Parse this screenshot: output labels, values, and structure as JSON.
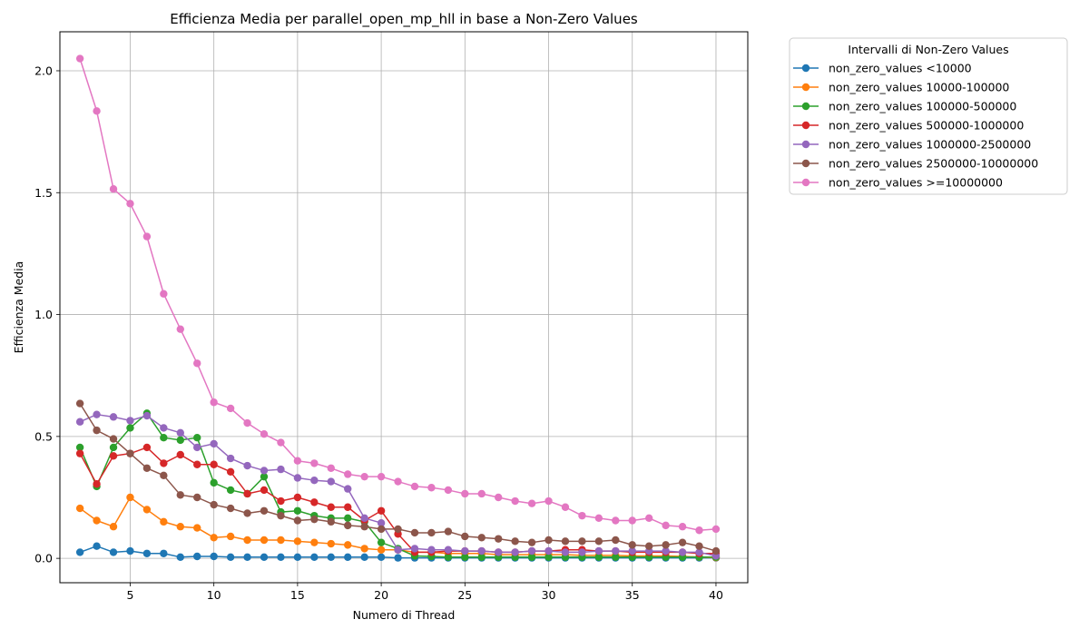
{
  "chart_data": {
    "type": "line",
    "title": "Efficienza Media per parallel_open_mp_hll in base a Non-Zero Values",
    "xlabel": "Numero di Thread",
    "ylabel": "Efficienza Media",
    "xlim": [
      0.8,
      41.9
    ],
    "ylim": [
      -0.1,
      2.16
    ],
    "x_ticks": [
      5,
      10,
      15,
      20,
      25,
      30,
      35,
      40
    ],
    "y_ticks": [
      0.0,
      0.5,
      1.0,
      1.5,
      2.0
    ],
    "x_tick_labels": [
      "5",
      "10",
      "15",
      "20",
      "25",
      "30",
      "35",
      "40"
    ],
    "y_tick_labels": [
      "0.0",
      "0.5",
      "1.0",
      "1.5",
      "2.0"
    ],
    "grid": true,
    "legend_title": "Intervalli di Non-Zero Values",
    "legend_position": "outside-right-top",
    "x": [
      2,
      3,
      4,
      5,
      6,
      7,
      8,
      9,
      10,
      11,
      12,
      13,
      14,
      15,
      16,
      17,
      18,
      19,
      20,
      21,
      22,
      23,
      24,
      25,
      26,
      27,
      28,
      29,
      30,
      31,
      32,
      33,
      34,
      35,
      36,
      37,
      38,
      39,
      40
    ],
    "series": [
      {
        "name": "non_zero_values <10000",
        "color": "#1f77b4",
        "values": [
          0.025,
          0.05,
          0.025,
          0.03,
          0.02,
          0.02,
          0.005,
          0.008,
          0.008,
          0.005,
          0.005,
          0.005,
          0.005,
          0.005,
          0.005,
          0.005,
          0.005,
          0.005,
          0.005,
          0.002,
          0.002,
          0.002,
          0.002,
          0.002,
          0.002,
          0.002,
          0.002,
          0.002,
          0.002,
          0.002,
          0.002,
          0.002,
          0.002,
          0.002,
          0.002,
          0.002,
          0.002,
          0.002,
          0.002
        ]
      },
      {
        "name": "non_zero_values 10000-100000",
        "color": "#ff7f0e",
        "values": [
          0.205,
          0.155,
          0.13,
          0.25,
          0.2,
          0.15,
          0.13,
          0.125,
          0.085,
          0.09,
          0.075,
          0.075,
          0.075,
          0.07,
          0.065,
          0.06,
          0.055,
          0.04,
          0.035,
          0.035,
          0.025,
          0.025,
          0.02,
          0.02,
          0.02,
          0.015,
          0.015,
          0.015,
          0.015,
          0.015,
          0.012,
          0.012,
          0.012,
          0.01,
          0.01,
          0.01,
          0.008,
          0.005,
          0.003
        ]
      },
      {
        "name": "non_zero_values 100000-500000",
        "color": "#2ca02c",
        "values": [
          0.455,
          0.295,
          0.455,
          0.535,
          0.595,
          0.495,
          0.485,
          0.495,
          0.31,
          0.28,
          0.265,
          0.335,
          0.19,
          0.195,
          0.175,
          0.165,
          0.165,
          0.15,
          0.065,
          0.04,
          0.01,
          0.008,
          0.005,
          0.005,
          0.005,
          0.005,
          0.005,
          0.005,
          0.005,
          0.005,
          0.005,
          0.005,
          0.005,
          0.005,
          0.005,
          0.005,
          0.005,
          0.005,
          0.005
        ]
      },
      {
        "name": "non_zero_values 500000-1000000",
        "color": "#d62728",
        "values": [
          0.43,
          0.305,
          0.42,
          0.43,
          0.455,
          0.39,
          0.425,
          0.385,
          0.385,
          0.355,
          0.265,
          0.28,
          0.235,
          0.25,
          0.23,
          0.21,
          0.21,
          0.155,
          0.195,
          0.1,
          0.025,
          0.025,
          0.03,
          0.03,
          0.03,
          0.025,
          0.025,
          0.03,
          0.03,
          0.035,
          0.035,
          0.03,
          0.03,
          0.025,
          0.025,
          0.025,
          0.025,
          0.02,
          0.02
        ]
      },
      {
        "name": "non_zero_values 1000000-2500000",
        "color": "#9467bd",
        "values": [
          0.56,
          0.59,
          0.58,
          0.565,
          0.585,
          0.535,
          0.515,
          0.455,
          0.47,
          0.41,
          0.38,
          0.36,
          0.365,
          0.33,
          0.32,
          0.315,
          0.285,
          0.165,
          0.145,
          0.035,
          0.04,
          0.035,
          0.035,
          0.03,
          0.03,
          0.025,
          0.025,
          0.03,
          0.03,
          0.025,
          0.025,
          0.03,
          0.03,
          0.03,
          0.03,
          0.03,
          0.025,
          0.025,
          0.01
        ]
      },
      {
        "name": "non_zero_values 2500000-10000000",
        "color": "#8c564b",
        "values": [
          0.635,
          0.525,
          0.49,
          0.43,
          0.37,
          0.34,
          0.26,
          0.25,
          0.22,
          0.205,
          0.185,
          0.195,
          0.175,
          0.155,
          0.16,
          0.15,
          0.135,
          0.13,
          0.12,
          0.12,
          0.105,
          0.105,
          0.11,
          0.09,
          0.085,
          0.08,
          0.07,
          0.065,
          0.075,
          0.07,
          0.07,
          0.07,
          0.075,
          0.055,
          0.05,
          0.055,
          0.065,
          0.05,
          0.03
        ]
      },
      {
        "name": "non_zero_values >=10000000",
        "color": "#e377c2",
        "values": [
          2.05,
          1.835,
          1.515,
          1.455,
          1.32,
          1.085,
          0.94,
          0.8,
          0.64,
          0.615,
          0.555,
          0.51,
          0.475,
          0.4,
          0.39,
          0.37,
          0.345,
          0.335,
          0.335,
          0.315,
          0.295,
          0.29,
          0.28,
          0.265,
          0.265,
          0.25,
          0.235,
          0.225,
          0.235,
          0.21,
          0.175,
          0.165,
          0.155,
          0.155,
          0.165,
          0.135,
          0.13,
          0.115,
          0.12
        ]
      }
    ]
  }
}
